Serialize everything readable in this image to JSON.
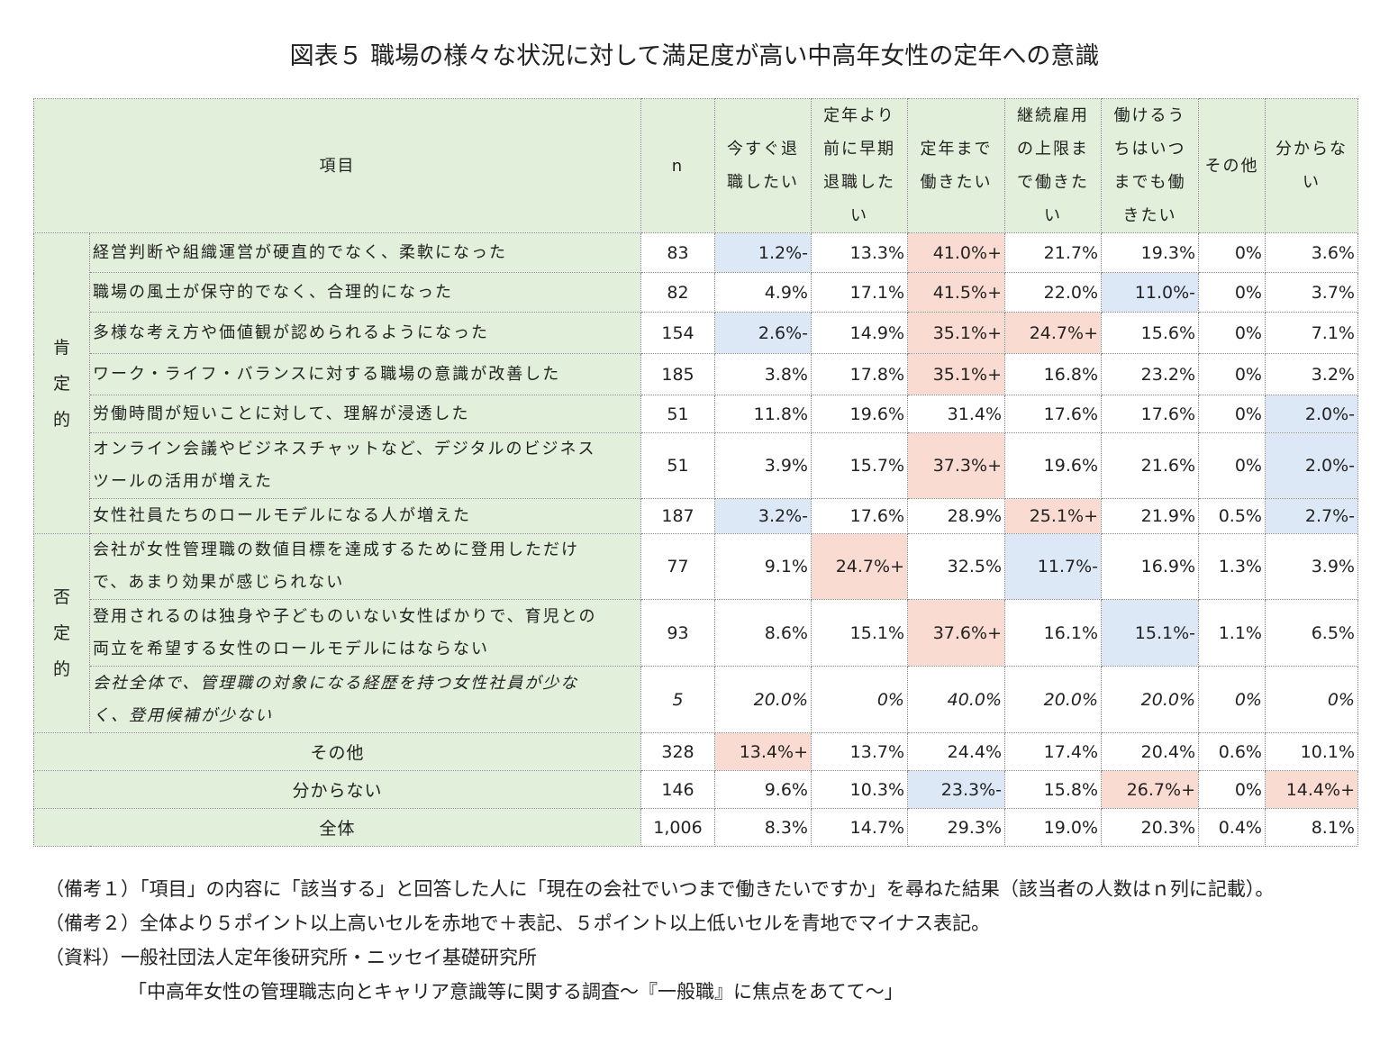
{
  "title": "図表５ 職場の様々な状況に対して満足度が高い中高年女性の定年への意識",
  "table": {
    "headers": [
      "項目",
      "n",
      "今すぐ退職したい",
      "定年より前に早期退職したい",
      "定年まで働きたい",
      "継続雇用の上限まで働きたい",
      "働けるうちはいつまでも働きたい",
      "その他",
      "分からない"
    ],
    "groups": [
      {
        "label": "肯定的"
      },
      {
        "label": "否定的"
      }
    ],
    "rows": [
      {
        "label": "経営判断や組織運営が硬直的でなく、柔軟になった",
        "n": "83",
        "values": [
          "1.2%-",
          "13.3%",
          "41.0%+",
          "21.7%",
          "19.3%",
          "0%",
          "3.6%"
        ]
      },
      {
        "label": "職場の風土が保守的でなく、合理的になった",
        "n": "82",
        "values": [
          "4.9%",
          "17.1%",
          "41.5%+",
          "22.0%",
          "11.0%-",
          "0%",
          "3.7%"
        ]
      },
      {
        "label": "多様な考え方や価値観が認められるようになった",
        "n": "154",
        "values": [
          "2.6%-",
          "14.9%",
          "35.1%+",
          "24.7%+",
          "15.6%",
          "0%",
          "7.1%"
        ]
      },
      {
        "label": "ワーク・ライフ・バランスに対する職場の意識が改善した",
        "n": "185",
        "values": [
          "3.8%",
          "17.8%",
          "35.1%+",
          "16.8%",
          "23.2%",
          "0%",
          "3.2%"
        ]
      },
      {
        "label": "労働時間が短いことに対して、理解が浸透した",
        "n": "51",
        "values": [
          "11.8%",
          "19.6%",
          "31.4%",
          "17.6%",
          "17.6%",
          "0%",
          "2.0%-"
        ]
      },
      {
        "label_lines": [
          "オンライン会議やビジネスチャットなど、デジタルのビジネス",
          "ツールの活用が増えた"
        ],
        "n": "51",
        "values": [
          "3.9%",
          "15.7%",
          "37.3%+",
          "19.6%",
          "21.6%",
          "0%",
          "2.0%-"
        ]
      },
      {
        "label": "女性社員たちのロールモデルになる人が増えた",
        "n": "187",
        "values": [
          "3.2%-",
          "17.6%",
          "28.9%",
          "25.1%+",
          "21.9%",
          "0.5%",
          "2.7%-"
        ]
      },
      {
        "label_lines": [
          "会社が女性管理職の数値目標を達成するために登用しただけ",
          "で、あまり効果が感じられない"
        ],
        "n": "77",
        "values": [
          "9.1%",
          "24.7%+",
          "32.5%",
          "11.7%-",
          "16.9%",
          "1.3%",
          "3.9%"
        ]
      },
      {
        "label_lines": [
          "登用されるのは独身や子どものいない女性ばかりで、育児との",
          "両立を希望する女性のロールモデルにはならない"
        ],
        "n": "93",
        "values": [
          "8.6%",
          "15.1%",
          "37.6%+",
          "16.1%",
          "15.1%-",
          "1.1%",
          "6.5%"
        ]
      },
      {
        "label_lines": [
          "会社全体で、管理職の対象になる経歴を持つ女性社員が少な",
          "く、登用候補が少ない"
        ],
        "n": "5",
        "values": [
          "20.0%",
          "0%",
          "40.0%",
          "20.0%",
          "20.0%",
          "0%",
          "0%"
        ]
      },
      {
        "label": "その他",
        "n": "328",
        "values": [
          "13.4%+",
          "13.7%",
          "24.4%",
          "17.4%",
          "20.4%",
          "0.6%",
          "10.1%"
        ]
      },
      {
        "label": "分からない",
        "n": "146",
        "values": [
          "9.6%",
          "10.3%",
          "23.3%-",
          "15.8%",
          "26.7%+",
          "0%",
          "14.4%+"
        ]
      },
      {
        "label": "全体",
        "n": "1,006",
        "values": [
          "8.3%",
          "14.7%",
          "29.3%",
          "19.0%",
          "20.3%",
          "0.4%",
          "8.1%"
        ]
      }
    ],
    "colors": {
      "header_bg": "#e2efda",
      "plus_bg": "#fadbd2",
      "minus_bg": "#dde8f7"
    }
  },
  "notes": [
    "（備考１）「項目」の内容に「該当する」と回答した人に「現在の会社でいつまで働きたいですか」を尋ねた結果（該当者の人数はｎ列に記載）。",
    "（備考２）全体より５ポイント以上高いセルを赤地で＋表記、５ポイント以上低いセルを青地でマイナス表記。",
    "（資料）一般社団法人定年後研究所・ニッセイ基礎研究所",
    "「中高年女性の管理職志向とキャリア意識等に関する調査～『一般職』に焦点をあてて～」"
  ]
}
